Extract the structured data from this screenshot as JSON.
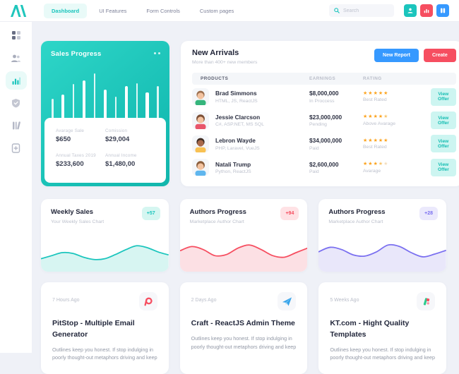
{
  "colors": {
    "accent_teal": "#1BC5BD",
    "accent_red": "#F64E60",
    "accent_blue": "#3699FF",
    "accent_purple": "#7A6FF0",
    "background": "#EFF1F7",
    "star_full": "#FCA31E"
  },
  "navbar": {
    "logo_icon": "brand-mark-icon",
    "items": [
      {
        "label": "Dashboard",
        "active": true
      },
      {
        "label": "UI Features",
        "active": false
      },
      {
        "label": "Form Controls",
        "active": false
      },
      {
        "label": "Custom pages",
        "active": false
      }
    ],
    "search": {
      "icon": "search-icon",
      "placeholder": "Search"
    },
    "actions": [
      {
        "icon": "user-icon",
        "color": "#1BC5BD"
      },
      {
        "icon": "bar-chart-icon",
        "color": "#F64E60"
      },
      {
        "icon": "columns-icon",
        "color": "#3699FF"
      }
    ]
  },
  "sidebar": {
    "items": [
      {
        "icon": "grid-icon",
        "active": false
      },
      {
        "icon": "users-icon",
        "active": false
      },
      {
        "icon": "bar-chart-icon",
        "active": true
      },
      {
        "icon": "shield-icon",
        "active": false
      },
      {
        "icon": "library-icon",
        "active": false
      },
      {
        "icon": "file-plus-icon",
        "active": false
      }
    ]
  },
  "sales_card": {
    "title": "Sales Progress",
    "menu_icon": "more-dots-icon",
    "stats": [
      {
        "label": "Avarage Sale",
        "value": "$650"
      },
      {
        "label": "Comission",
        "value": "$29,004"
      },
      {
        "label": "Annual Taxes 2019",
        "value": "$233,600"
      },
      {
        "label": "Annual Income",
        "value": "$1,480,00"
      }
    ]
  },
  "new_arrivals": {
    "title": "New Arrivals",
    "subtitle": "More than 400+ new members",
    "buttons": [
      {
        "label": "New Report",
        "color": "#3699FF"
      },
      {
        "label": "Create",
        "color": "#F64E60"
      }
    ],
    "columns": [
      "PRODUCTS",
      "EARNINGS",
      "RATING"
    ],
    "rows": [
      {
        "name": "Brad Simmons",
        "skills": "HTML, JS, ReactJS",
        "earnings": "$8,000,000",
        "status": "In Proccess",
        "stars": 5,
        "rating_label": "Best Rated",
        "action": "View Offer",
        "avatar": {
          "hair": "#9C7050",
          "skin": "#F3C3A0",
          "shirt": "#35B57C"
        }
      },
      {
        "name": "Jessie Clarcson",
        "skills": "C#, ASP.NET, MS SQL",
        "earnings": "$23,000,000",
        "status": "Pending",
        "stars": 4.5,
        "rating_label": "Above Avarage",
        "action": "View Offer",
        "avatar": {
          "hair": "#7C4F35",
          "skin": "#F3C3A0",
          "shirt": "#E8566B"
        }
      },
      {
        "name": "Lebron Wayde",
        "skills": "PHP, Laravel, VueJS",
        "earnings": "$34,000,000",
        "status": "Paid",
        "stars": 5,
        "rating_label": "Best Rated",
        "action": "View Offer",
        "avatar": {
          "hair": "#3E2C23",
          "skin": "#A96A4B",
          "shirt": "#F8C153"
        }
      },
      {
        "name": "Natali Trump",
        "skills": "Python, ReactJS",
        "earnings": "$2,600,000",
        "status": "Paid",
        "stars": 3.5,
        "rating_label": "Avarage",
        "action": "View Offer",
        "avatar": {
          "hair": "#8B5E3C",
          "skin": "#F3C3A0",
          "shirt": "#5FB6EE"
        }
      }
    ]
  },
  "stat_cards": [
    {
      "title": "Weekly Sales",
      "subtitle": "Your Weekly Sales Chart",
      "badge": "+57",
      "accent": "#1BC5BD",
      "badge_bg": "#D5F6F1",
      "chart_id": "weekly_sales"
    },
    {
      "title": "Authors Progress",
      "subtitle": "Marketplace Author Chart",
      "badge": "+94",
      "accent": "#F64E60",
      "badge_bg": "#FFE2E5",
      "chart_id": "authors_progress_1"
    },
    {
      "title": "Authors Progress",
      "subtitle": "Marketplace Author Chart",
      "badge": "+28",
      "accent": "#7A6FF0",
      "badge_bg": "#EBE9FC",
      "chart_id": "authors_progress_2"
    }
  ],
  "news_cards": [
    {
      "time": "7 Hours Ago",
      "icon": "pitstop-logo-icon",
      "title": "PitStop - Multiple Email Generator",
      "body": "Outlines keep you honest. If stop  indulging in poorly thought-out metaphors driving and keep"
    },
    {
      "time": "2 Days Ago",
      "icon": "paper-plane-icon",
      "title": "Craft - ReactJS Admin Theme",
      "body": "Outlines keep you honest. If stop  indulging in poorly thought-out metaphors driving and keep"
    },
    {
      "time": "5 Weeks Ago",
      "icon": "kt-logo-icon",
      "title": "KT.com - Hight Quality Templates",
      "body": "Outlines keep you honest. If stop  indulging in poorly thought-out metaphors driving and keep"
    }
  ],
  "chart_data": [
    {
      "id": "sales_progress",
      "type": "bar",
      "title": "Sales Progress",
      "values": [
        38,
        46,
        66,
        73,
        88,
        56,
        42,
        62,
        68,
        50,
        62
      ],
      "color": "#FFFFFF",
      "note": "white bars on teal widget, no axes shown"
    },
    {
      "id": "weekly_sales",
      "type": "area",
      "title": "Weekly Sales",
      "badge": "+57",
      "values": [
        34,
        42,
        50,
        48,
        38,
        32,
        34,
        45,
        58,
        68,
        63,
        52,
        44
      ],
      "ylim": [
        0,
        100
      ],
      "color": "#1BC5BD",
      "fill": "#D7F5F2",
      "grid": false
    },
    {
      "id": "authors_progress_1",
      "type": "area",
      "title": "Authors Progress",
      "badge": "+94",
      "values": [
        55,
        66,
        58,
        42,
        45,
        62,
        70,
        58,
        42,
        38,
        50,
        62
      ],
      "ylim": [
        0,
        100
      ],
      "color": "#F64E60",
      "fill": "#FCE0E4",
      "grid": false
    },
    {
      "id": "authors_progress_2",
      "type": "area",
      "title": "Authors Progress",
      "badge": "+28",
      "values": [
        52,
        64,
        58,
        44,
        41,
        52,
        70,
        66,
        50,
        39,
        46,
        56
      ],
      "ylim": [
        0,
        100
      ],
      "color": "#7A6FF0",
      "fill": "#E9E7FA",
      "grid": false
    }
  ]
}
